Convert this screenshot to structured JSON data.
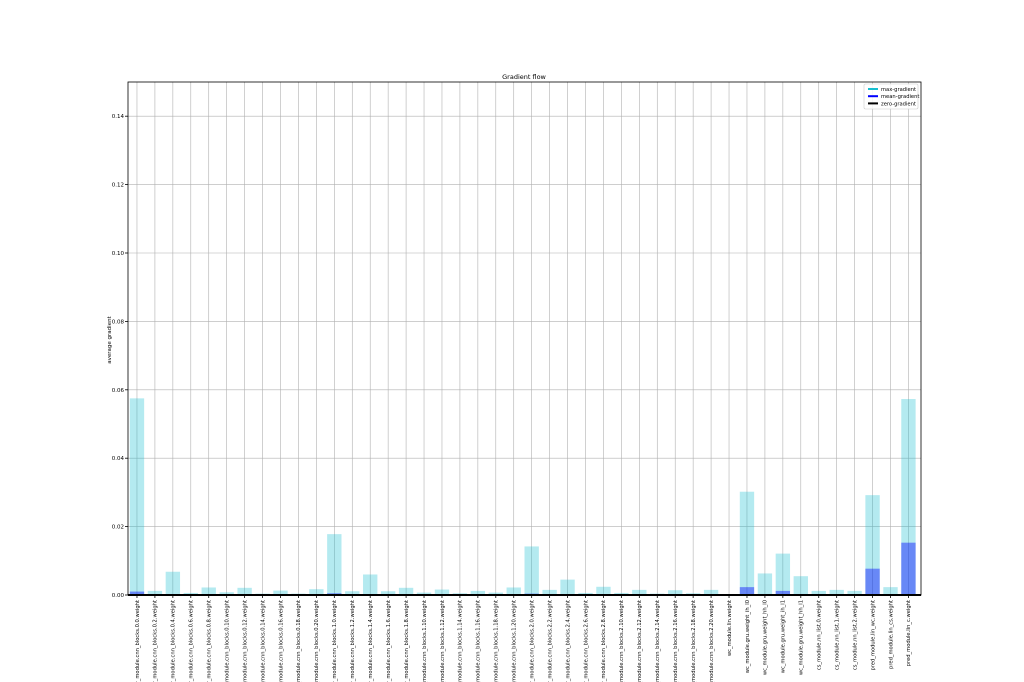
{
  "chart_data": {
    "type": "bar",
    "title": "Gradient flow",
    "xlabel": "",
    "ylabel": "average gradient",
    "ylim": [
      0,
      0.15
    ],
    "yticks": [
      0.0,
      0.02,
      0.04,
      0.06,
      0.08,
      0.1,
      0.12,
      0.14
    ],
    "ytick_labels": [
      "0.00",
      "0.02",
      "0.04",
      "0.06",
      "0.08",
      "0.10",
      "0.12",
      "0.14"
    ],
    "grid": true,
    "legend_position": "top-right",
    "legend": [
      {
        "label": "max-gradient",
        "color": "#17becf"
      },
      {
        "label": "mean-gradient",
        "color": "#0000ff"
      },
      {
        "label": "zero-gradient",
        "color": "#000000"
      }
    ],
    "categories": [
      "gr_module.cnn_blocks.0.0.weight",
      "gr_module.cnn_blocks.0.2.weight",
      "gr_module.cnn_blocks.0.4.weight",
      "gr_module.cnn_blocks.0.6.weight",
      "gr_module.cnn_blocks.0.8.weight",
      "r_module.cnn_blocks.0.10.weight",
      "r_module.cnn_blocks.0.12.weight",
      "r_module.cnn_blocks.0.14.weight",
      "r_module.cnn_blocks.0.16.weight",
      "r_module.cnn_blocks.0.18.weight",
      "r_module.cnn_blocks.0.20.weight",
      "gr_module.cnn_blocks.1.0.weight",
      "gr_module.cnn_blocks.1.2.weight",
      "gr_module.cnn_blocks.1.4.weight",
      "gr_module.cnn_blocks.1.6.weight",
      "gr_module.cnn_blocks.1.8.weight",
      "r_module.cnn_blocks.1.10.weight",
      "r_module.cnn_blocks.1.12.weight",
      "r_module.cnn_blocks.1.14.weight",
      "r_module.cnn_blocks.1.16.weight",
      "r_module.cnn_blocks.1.18.weight",
      "r_module.cnn_blocks.1.20.weight",
      "gr_module.cnn_blocks.2.0.weight",
      "gr_module.cnn_blocks.2.2.weight",
      "gr_module.cnn_blocks.2.4.weight",
      "gr_module.cnn_blocks.2.6.weight",
      "gr_module.cnn_blocks.2.8.weight",
      "r_module.cnn_blocks.2.10.weight",
      "r_module.cnn_blocks.2.12.weight",
      "r_module.cnn_blocks.2.14.weight",
      "r_module.cnn_blocks.2.16.weight",
      "r_module.cnn_blocks.2.18.weight",
      "r_module.cnn_blocks.2.20.weight",
      "wc_module.lin.weight",
      "wc_module.gru.weight_ih_l0",
      "wc_module.gru.weight_hh_l0",
      "wc_module.gru.weight_ih_l1",
      "wc_module.gru.weight_hh_l1",
      "cs_module.nn_list.0.weight",
      "cs_module.nn_list.1.weight",
      "cs_module.nn_list.2.weight",
      "pred_module.lin_wc.weight",
      "pred_module.lin_cs.weight",
      "pred_module.lin_c.weight"
    ],
    "series": [
      {
        "name": "max-gradient",
        "color": "#17becf",
        "values": [
          0.0575,
          0.0012,
          0.0068,
          0.0006,
          0.0022,
          0.0008,
          0.0021,
          0.0004,
          0.0013,
          0.0004,
          0.0017,
          0.0178,
          0.0011,
          0.006,
          0.0011,
          0.0021,
          0.0007,
          0.0016,
          0.0005,
          0.0012,
          0.0007,
          0.0022,
          0.0142,
          0.0015,
          0.0045,
          0.0006,
          0.0024,
          0.0006,
          0.0015,
          0.0004,
          0.0014,
          0.0005,
          0.0015,
          0.0,
          0.0302,
          0.0063,
          0.0121,
          0.0055,
          0.0012,
          0.0015,
          0.0012,
          0.0292,
          0.0023,
          0.0573
        ]
      },
      {
        "name": "mean-gradient",
        "color": "#0000ff",
        "values": [
          0.001,
          0.0001,
          0.0003,
          0.0001,
          0.0001,
          0.0001,
          0.0001,
          0.0001,
          0.0001,
          0.0001,
          0.0001,
          0.0005,
          0.0001,
          0.0002,
          0.0001,
          0.0001,
          0.0001,
          0.0001,
          0.0001,
          0.0001,
          0.0001,
          0.0001,
          0.0004,
          0.0001,
          0.0002,
          0.0001,
          0.0001,
          0.0001,
          0.0001,
          0.0001,
          0.0001,
          0.0001,
          0.0001,
          0.0,
          0.0023,
          0.0003,
          0.0012,
          0.0003,
          0.0001,
          0.0001,
          0.0001,
          0.0077,
          0.0002,
          0.0153
        ]
      }
    ]
  }
}
